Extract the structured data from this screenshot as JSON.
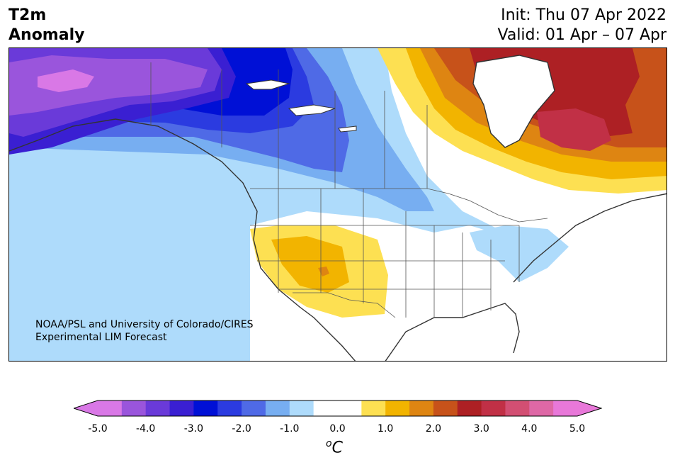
{
  "title": {
    "left_line1": "T2m",
    "left_line2": "Anomaly",
    "right_line1": "Init: Thu 07 Apr 2022",
    "right_line2": "Valid: 01 Apr – 07 Apr"
  },
  "credit": {
    "line1": "NOAA/PSL and University of Colorado/CIRES",
    "line2": "Experimental LIM Forecast"
  },
  "colorbar": {
    "ticks": [
      "-5.0",
      "-4.0",
      "-3.0",
      "-2.0",
      "-1.0",
      "0.0",
      "1.0",
      "2.0",
      "3.0",
      "4.0",
      "5.0"
    ],
    "unit_super": "o",
    "unit_text": "C",
    "colors": [
      "#d978e6",
      "#9a55dc",
      "#6a3ad9",
      "#3a1fd2",
      "#0010d6",
      "#2b3be0",
      "#4f6ae6",
      "#77aef1",
      "#aedbfb",
      "#ffffff",
      "#ffffff",
      "#fde052",
      "#f2b400",
      "#de8512",
      "#c7521a",
      "#ad2024",
      "#c13046",
      "#d24f73",
      "#de68a6",
      "#e878d9"
    ]
  },
  "map": {
    "region": "North America",
    "highlights": [
      {
        "name": "alaska-cold",
        "color": "#9a55dc"
      },
      {
        "name": "canada-cold",
        "color": "#0010d6"
      },
      {
        "name": "quebec-warm",
        "color": "#c13046"
      },
      {
        "name": "southwest-warm",
        "color": "#f2b400"
      },
      {
        "name": "mid-atlantic-cool",
        "color": "#aedbfb"
      }
    ]
  }
}
